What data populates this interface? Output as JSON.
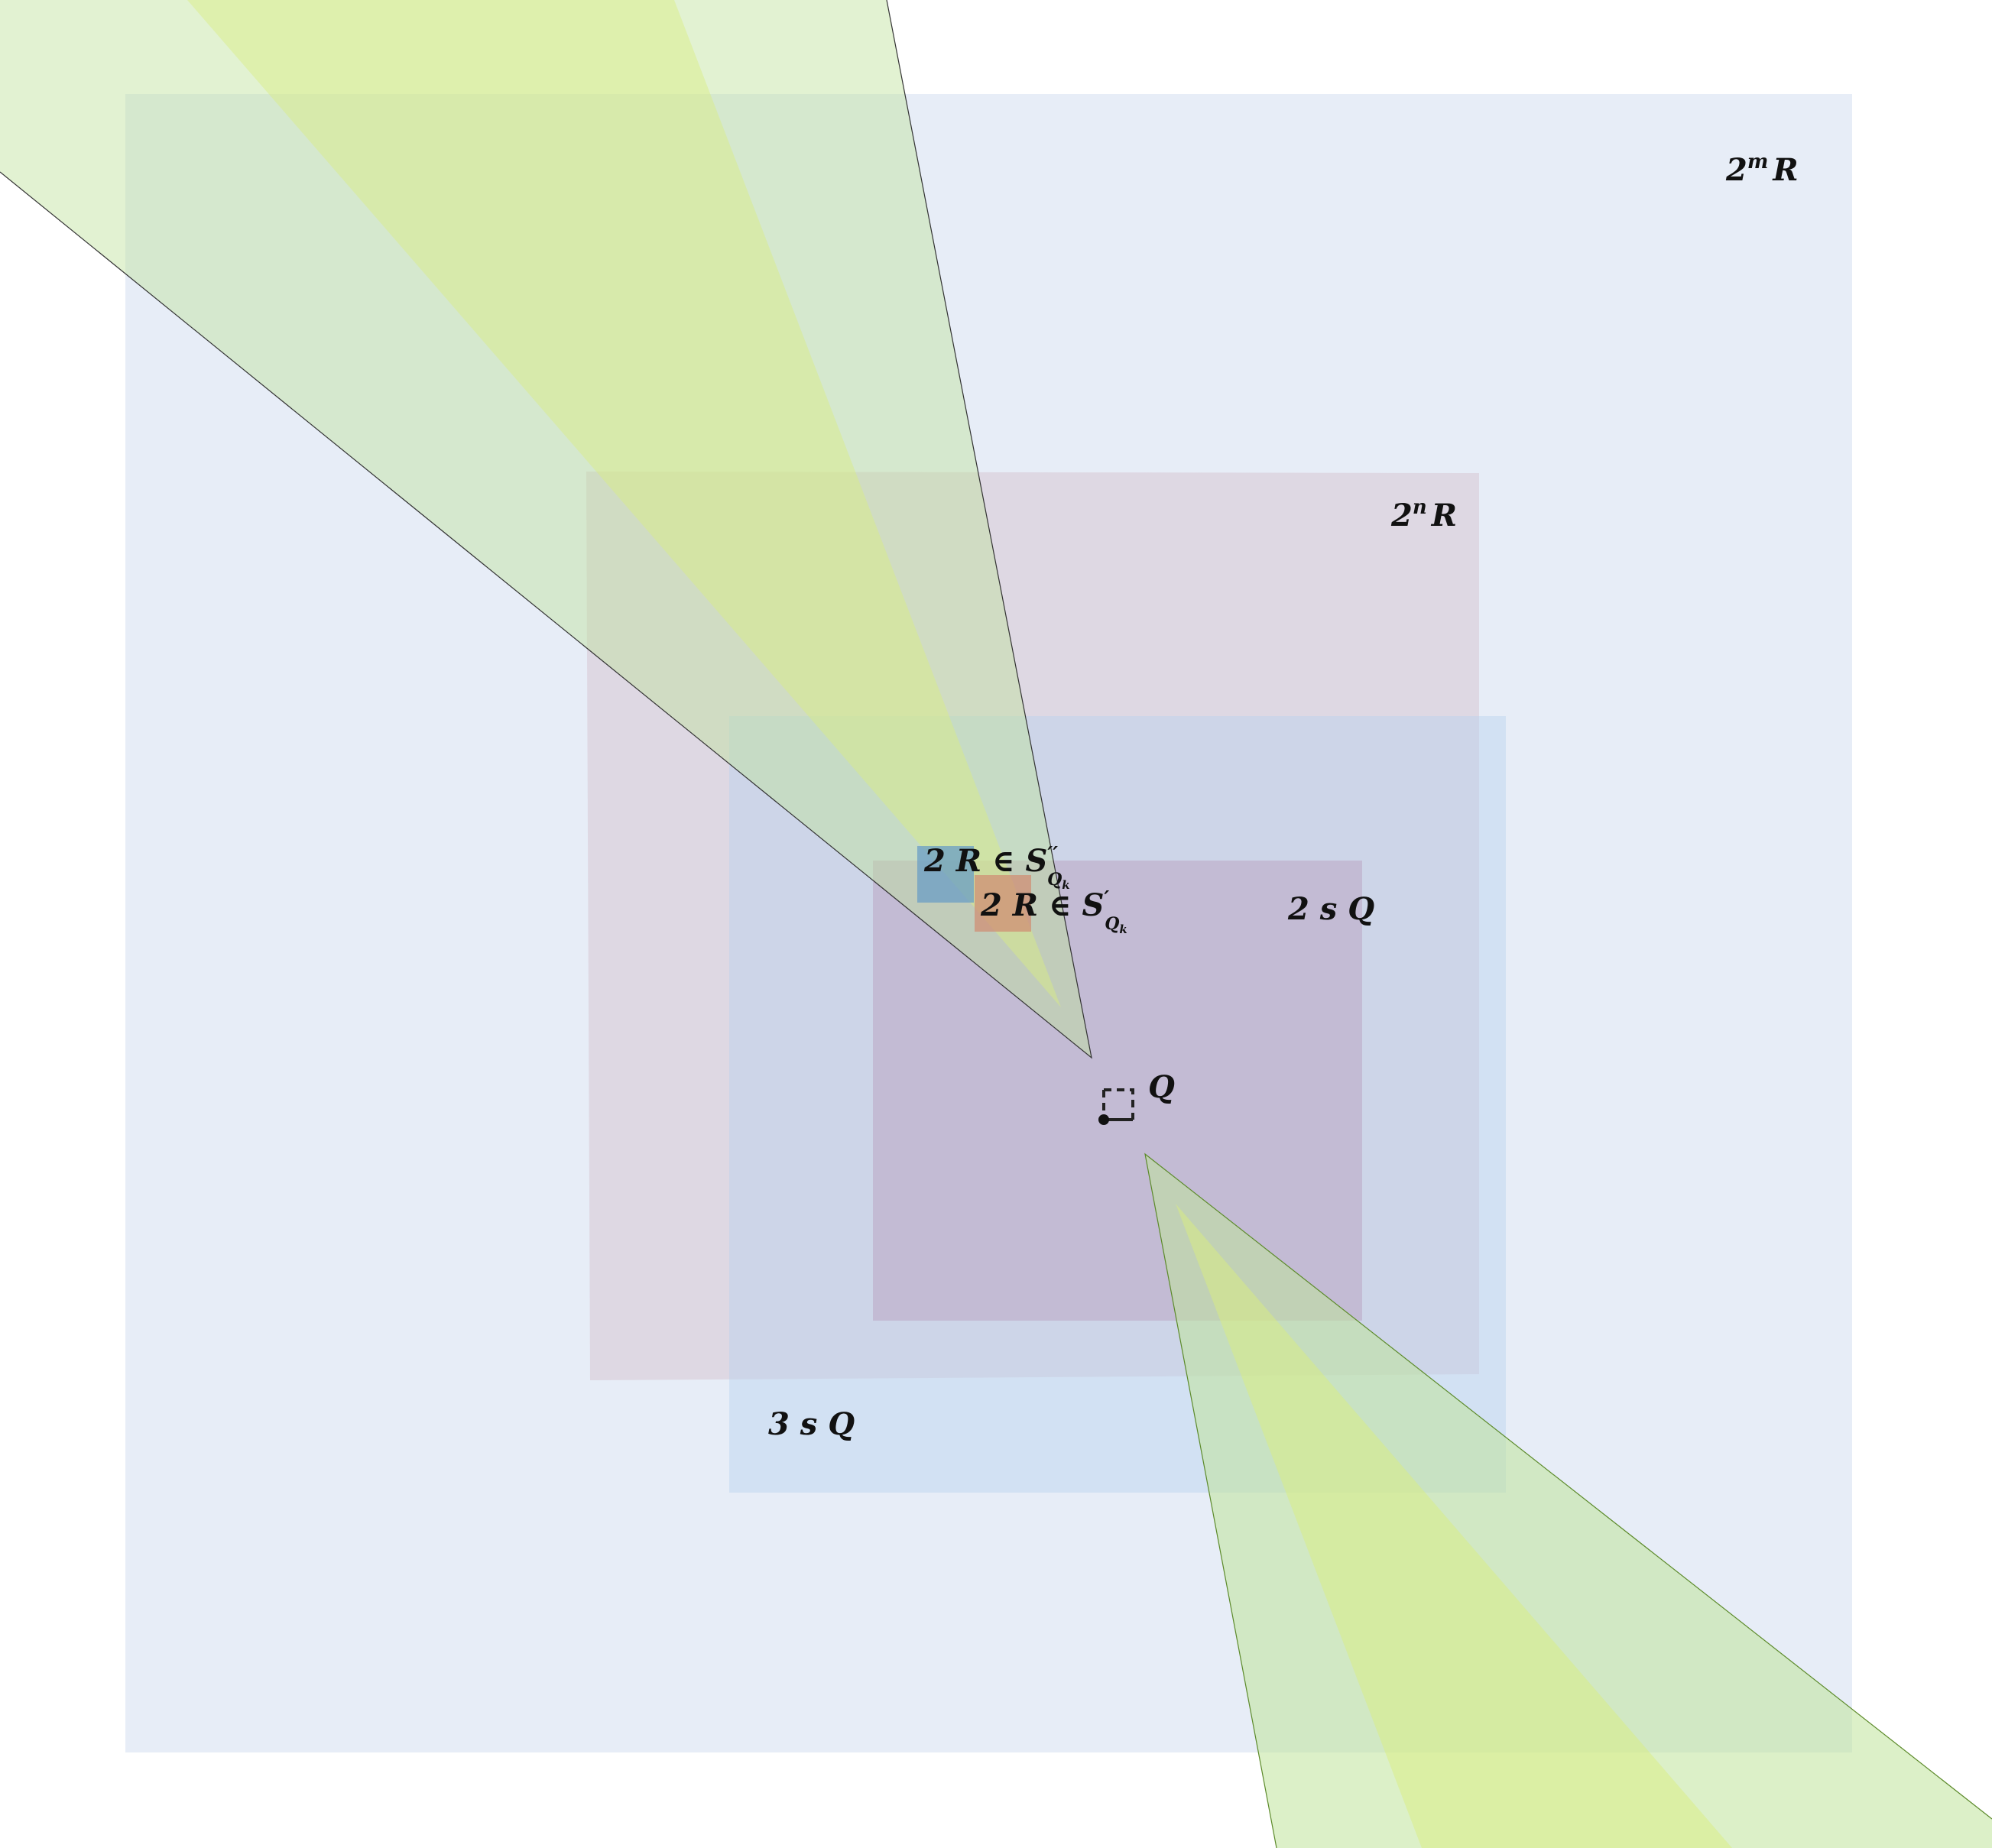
{
  "colors": {
    "outer": "#c9d7ee",
    "large_mauve": "#d9c9d6",
    "blue_3sq": "#b9d3ee",
    "inner_2sq": "#bca6c3",
    "cone_green": "#bfe39b",
    "cone_yellow": "#d9ee80",
    "small_blue": "#6a9ec4",
    "small_red": "#d08a70",
    "ink": "#111111"
  },
  "labels": {
    "outer_base": "2",
    "outer_exp": "m",
    "outer_tail": "R",
    "large_base": "2",
    "large_exp": "n",
    "large_tail": "R",
    "two_s_q": "2 s Q",
    "three_s_q": "3 s Q",
    "q": "Q",
    "r2_main": "2 R ∈ S",
    "r2_prime": "′′",
    "r2_sub": "Q",
    "r2_subsub": "k",
    "r1_main": "2 R ∈ S",
    "r1_prime": "′",
    "r1_sub": "Q",
    "r1_subsub": "k"
  }
}
